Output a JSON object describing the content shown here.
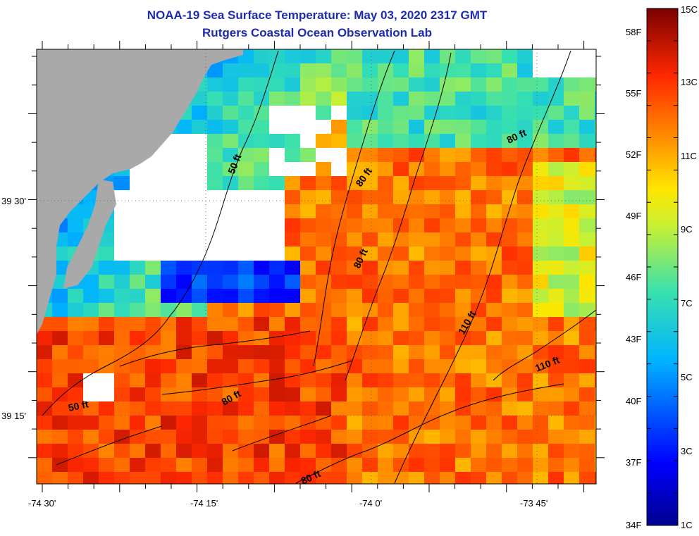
{
  "title": {
    "line1": "NOAA-19 Sea Surface Temperature:  May 03, 2020 2317 GMT",
    "line2": "Rutgers Coastal Ocean Observation Lab"
  },
  "axes": {
    "x_ticks": [
      "-74 30'",
      "-74 15'",
      "-74 0'",
      "-73 45'"
    ],
    "y_ticks": [
      "39 30'",
      "39 15'"
    ]
  },
  "contour_labels": [
    "50 ft",
    "80 ft",
    "80 ft",
    "80 ft",
    "80 ft",
    "110 ft",
    "110 ft",
    "80 ft",
    "50 ft"
  ],
  "colorbar": {
    "fahrenheit": [
      "58F",
      "55F",
      "52F",
      "49F",
      "46F",
      "43F",
      "40F",
      "37F",
      "34F"
    ],
    "celsius": [
      "15C",
      "13C",
      "11C",
      "9C",
      "7C",
      "5C",
      "3C",
      "1C"
    ],
    "min_c": 1,
    "max_c": 15
  },
  "colors": {
    "title": "#1f2bb0",
    "land": "#a9a9a9",
    "nodata": "#ffffff"
  }
}
